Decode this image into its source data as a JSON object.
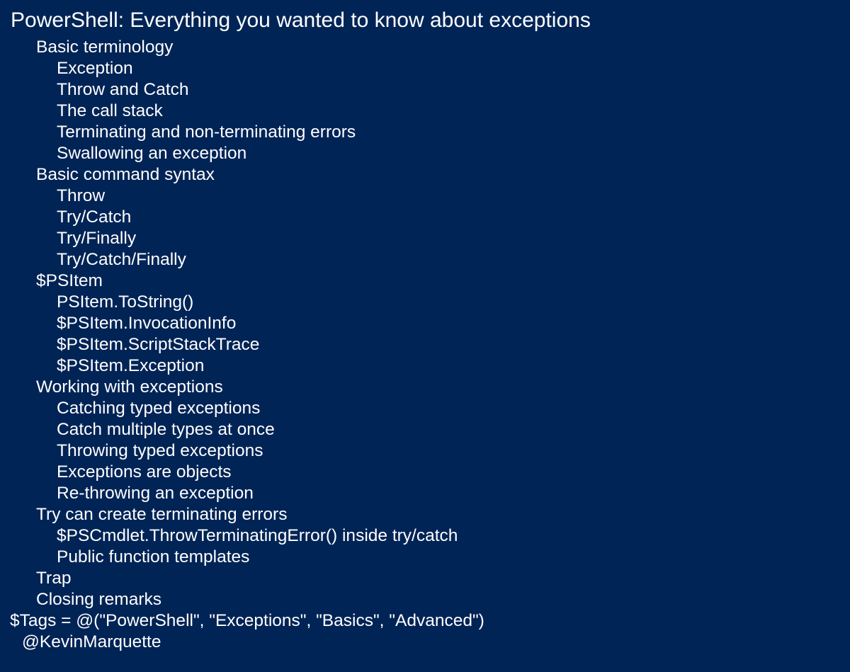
{
  "title": "PowerShell: Everything you wanted to know about exceptions",
  "outline": [
    {
      "text": "Basic terminology",
      "level": 1
    },
    {
      "text": "Exception",
      "level": 2
    },
    {
      "text": "Throw and Catch",
      "level": 2
    },
    {
      "text": "The call stack",
      "level": 2
    },
    {
      "text": "Terminating and non-terminating errors",
      "level": 2
    },
    {
      "text": "Swallowing an exception",
      "level": 2
    },
    {
      "text": "Basic command syntax",
      "level": 1
    },
    {
      "text": "Throw",
      "level": 2
    },
    {
      "text": "Try/Catch",
      "level": 2
    },
    {
      "text": "Try/Finally",
      "level": 2
    },
    {
      "text": "Try/Catch/Finally",
      "level": 2
    },
    {
      "text": "$PSItem",
      "level": 1
    },
    {
      "text": "PSItem.ToString()",
      "level": 2
    },
    {
      "text": "$PSItem.InvocationInfo",
      "level": 2
    },
    {
      "text": "$PSItem.ScriptStackTrace",
      "level": 2
    },
    {
      "text": "$PSItem.Exception",
      "level": 2
    },
    {
      "text": "Working with exceptions",
      "level": 1
    },
    {
      "text": "Catching typed exceptions",
      "level": 2
    },
    {
      "text": "Catch multiple types at once",
      "level": 2
    },
    {
      "text": "Throwing typed exceptions",
      "level": 2
    },
    {
      "text": "Exceptions are objects",
      "level": 2
    },
    {
      "text": "Re-throwing an exception",
      "level": 2
    },
    {
      "text": "Try can create terminating errors",
      "level": 1
    },
    {
      "text": "$PSCmdlet.ThrowTerminatingError() inside try/catch",
      "level": 2
    },
    {
      "text": "Public function templates",
      "level": 2
    },
    {
      "text": "Trap",
      "level": 1
    },
    {
      "text": "Closing remarks",
      "level": 1
    }
  ],
  "tags_line": "$Tags = @(\"PowerShell\", \"Exceptions\", \"Basics\", \"Advanced\")",
  "author": "@KevinMarquette",
  "colors": {
    "background": "#012456",
    "text": "#ffffff"
  }
}
